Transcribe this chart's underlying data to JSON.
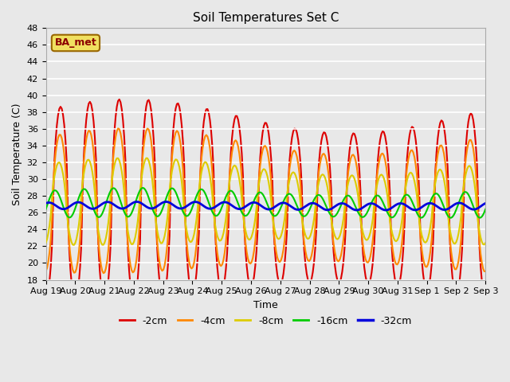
{
  "title": "Soil Temperatures Set C",
  "xlabel": "Time",
  "ylabel": "Soil Temperature (C)",
  "ylim": [
    18,
    48
  ],
  "yticks": [
    18,
    20,
    22,
    24,
    26,
    28,
    30,
    32,
    34,
    36,
    38,
    40,
    42,
    44,
    46,
    48
  ],
  "x_labels": [
    "Aug 19",
    "Aug 20",
    "Aug 21",
    "Aug 22",
    "Aug 23",
    "Aug 24",
    "Aug 25",
    "Aug 26",
    "Aug 27",
    "Aug 28",
    "Aug 29",
    "Aug 30",
    "Aug 31",
    "Sep 1",
    "Sep 2",
    "Sep 3"
  ],
  "series_colors": [
    "#dd0000",
    "#ff8800",
    "#ddcc00",
    "#00cc00",
    "#0000dd"
  ],
  "series_labels": [
    "-2cm",
    "-4cm",
    "-8cm",
    "-16cm",
    "-32cm"
  ],
  "line_widths": [
    1.5,
    1.5,
    1.5,
    1.5,
    2.0
  ],
  "background_color": "#e8e8e8",
  "plot_bg_color": "#e8e8e8",
  "grid_color": "#ffffff",
  "annotation_text": "BA_met",
  "annotation_bg": "#f0e060",
  "annotation_border": "#996600"
}
